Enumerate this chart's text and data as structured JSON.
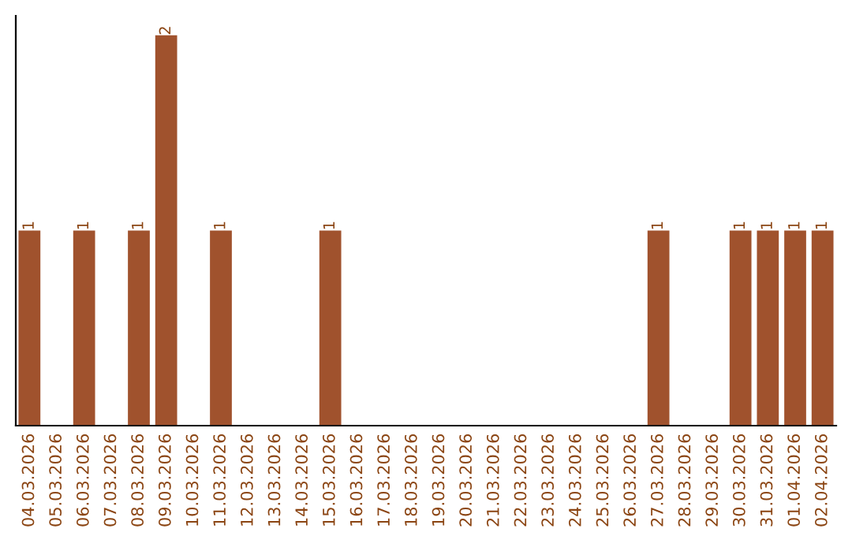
{
  "chart_data": {
    "type": "bar",
    "categories": [
      "04.03.2026",
      "05.03.2026",
      "06.03.2026",
      "07.03.2026",
      "08.03.2026",
      "09.03.2026",
      "10.03.2026",
      "11.03.2026",
      "12.03.2026",
      "13.03.2026",
      "14.03.2026",
      "15.03.2026",
      "16.03.2026",
      "17.03.2026",
      "18.03.2026",
      "19.03.2026",
      "20.03.2026",
      "21.03.2026",
      "22.03.2026",
      "23.03.2026",
      "24.03.2026",
      "25.03.2026",
      "26.03.2026",
      "27.03.2026",
      "28.03.2026",
      "29.03.2026",
      "30.03.2026",
      "31.03.2026",
      "01.04.2026",
      "02.04.2026"
    ],
    "values": [
      1,
      0,
      1,
      0,
      1,
      2,
      0,
      1,
      0,
      0,
      0,
      1,
      0,
      0,
      0,
      0,
      0,
      0,
      0,
      0,
      0,
      0,
      0,
      1,
      0,
      0,
      1,
      1,
      1,
      1
    ],
    "value_labels": [
      "1",
      null,
      "1",
      null,
      "1",
      "2",
      null,
      "1",
      null,
      null,
      null,
      "1",
      null,
      null,
      null,
      null,
      null,
      null,
      null,
      null,
      null,
      null,
      null,
      "1",
      null,
      null,
      "1",
      "1",
      "1",
      "1"
    ],
    "color": "#a0522d",
    "grid": false,
    "legend": false,
    "tick_labels": "x"
  }
}
